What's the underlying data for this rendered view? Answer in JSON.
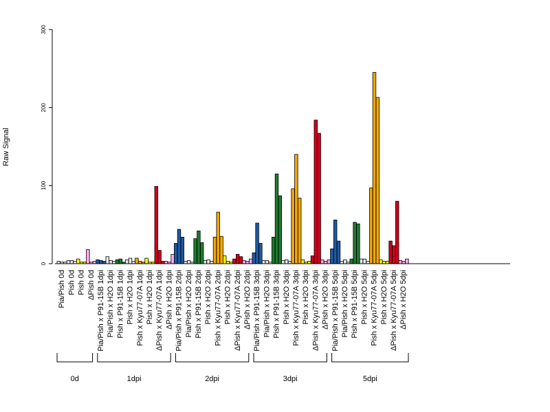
{
  "chart_data": {
    "type": "bar",
    "ylabel": "Raw Signal",
    "xlabel": "",
    "ylim": [
      0,
      300
    ],
    "yticks": [
      "0",
      "100",
      "200",
      "300"
    ],
    "grid": false,
    "legend": "none",
    "categories": [
      {
        "label": "Pia/Pish 0d",
        "color": "#e8e8e8",
        "values": [
          3,
          2,
          2
        ]
      },
      {
        "label": "Pish 0d",
        "color": "#e8e8e8",
        "values": [
          4,
          4,
          3
        ]
      },
      {
        "label": "Pish 0d",
        "color": "#ffff00",
        "values": [
          6,
          2,
          2
        ]
      },
      {
        "label": "ΔPish 0d",
        "color": "#f7a8f0",
        "values": [
          18,
          2,
          3
        ]
      },
      {
        "label": "Pia/Pish x P91-15B 1dpi",
        "color": "#1f5aa6",
        "values": [
          5,
          4,
          3
        ]
      },
      {
        "label": "Pia/Pish x H2O 1dpi",
        "color": "#e8e8e8",
        "values": [
          9,
          4,
          3
        ]
      },
      {
        "label": "Pish x P91-15B 1dpi",
        "color": "#1e7b2e",
        "values": [
          5,
          6,
          2
        ]
      },
      {
        "label": "Pish x H2O 1dpi",
        "color": "#e8e8e8",
        "values": [
          5,
          7,
          3
        ]
      },
      {
        "label": "Pish x Kyu77-07A 1dpi",
        "color": "#f5a800",
        "values": [
          7,
          3,
          2
        ]
      },
      {
        "label": "Pish x H2O 1dpi",
        "color": "#ffff00",
        "values": [
          7,
          2,
          2
        ]
      },
      {
        "label": "ΔPish x Kyu77-07A 1dpi",
        "color": "#d0001b",
        "values": [
          99,
          17,
          3
        ]
      },
      {
        "label": "ΔPish x H2O 1dpi",
        "color": "#f7a8f0",
        "values": [
          3,
          2,
          12
        ]
      },
      {
        "label": "Pia/Pish x P91-15B 2dpi",
        "color": "#1f5aa6",
        "values": [
          26,
          44,
          34
        ]
      },
      {
        "label": "Pia/Pish x H2O 2dpi",
        "color": "#e8e8e8",
        "values": [
          3,
          4,
          2
        ]
      },
      {
        "label": "Pish x P91-15B 2dpi",
        "color": "#1e7b2e",
        "values": [
          32,
          42,
          27
        ]
      },
      {
        "label": "Pish x H2O 2dpi",
        "color": "#e8e8e8",
        "values": [
          4,
          5,
          3
        ]
      },
      {
        "label": "Pish x Kyu77-07A 2dpi",
        "color": "#f5a800",
        "values": [
          34,
          66,
          35
        ]
      },
      {
        "label": "Pish x H2O 2dpi",
        "color": "#ffff00",
        "values": [
          10,
          3,
          2
        ]
      },
      {
        "label": "ΔPish x Kyu77-07A 2dpi",
        "color": "#d0001b",
        "values": [
          6,
          12,
          9
        ]
      },
      {
        "label": "ΔPish x H2O 2dpi",
        "color": "#f7a8f0",
        "values": [
          4,
          3,
          6
        ]
      },
      {
        "label": "Pia/Pish x P91-15B 3dpi",
        "color": "#1f5aa6",
        "values": [
          14,
          52,
          26
        ]
      },
      {
        "label": "Pia/Pish x H2O 3dpi",
        "color": "#e8e8e8",
        "values": [
          4,
          4,
          2
        ]
      },
      {
        "label": "Pish x P91-15B 3dpi",
        "color": "#1e7b2e",
        "values": [
          34,
          115,
          87
        ]
      },
      {
        "label": "Pish x H2O 3dpi",
        "color": "#e8e8e8",
        "values": [
          4,
          5,
          3
        ]
      },
      {
        "label": "Pish x Kyu77-07A 3dpi",
        "color": "#f5a800",
        "values": [
          96,
          140,
          84
        ]
      },
      {
        "label": "Pish x H2O 3dpi",
        "color": "#ffff00",
        "values": [
          5,
          2,
          3
        ]
      },
      {
        "label": "ΔPish x Kyu77-07A 3dpi",
        "color": "#d0001b",
        "values": [
          10,
          184,
          167
        ]
      },
      {
        "label": "ΔPish x H2O 3dpi",
        "color": "#f7a8f0",
        "values": [
          5,
          3,
          5
        ]
      },
      {
        "label": "Pia/Pish x P91-15B 5dpi",
        "color": "#1f5aa6",
        "values": [
          19,
          56,
          29
        ]
      },
      {
        "label": "Pia/Pish x H2O 5dpi",
        "color": "#e8e8e8",
        "values": [
          3,
          5,
          2
        ]
      },
      {
        "label": "Pish x P91-15B 5dpi",
        "color": "#1e7b2e",
        "values": [
          6,
          53,
          51
        ]
      },
      {
        "label": "Pish x H2O 5dpi",
        "color": "#e8e8e8",
        "values": [
          6,
          6,
          3
        ]
      },
      {
        "label": "Pish x Kyu77-07A 5dpi",
        "color": "#f5a800",
        "values": [
          97,
          245,
          213
        ]
      },
      {
        "label": "Pish x H2O 5dpi",
        "color": "#ffff00",
        "values": [
          5,
          3,
          3
        ]
      },
      {
        "label": "ΔPish x Kyu77-07A 5dpi",
        "color": "#d0001b",
        "values": [
          29,
          23,
          80
        ]
      },
      {
        "label": "ΔPish x H2O 5dpi",
        "color": "#f7a8f0",
        "values": [
          4,
          3,
          6
        ]
      }
    ],
    "groups": [
      {
        "label": "0d",
        "count": 4
      },
      {
        "label": "1dpi",
        "count": 8
      },
      {
        "label": "2dpi",
        "count": 8
      },
      {
        "label": "3dpi",
        "count": 8
      },
      {
        "label": "5dpi",
        "count": 8
      }
    ]
  }
}
